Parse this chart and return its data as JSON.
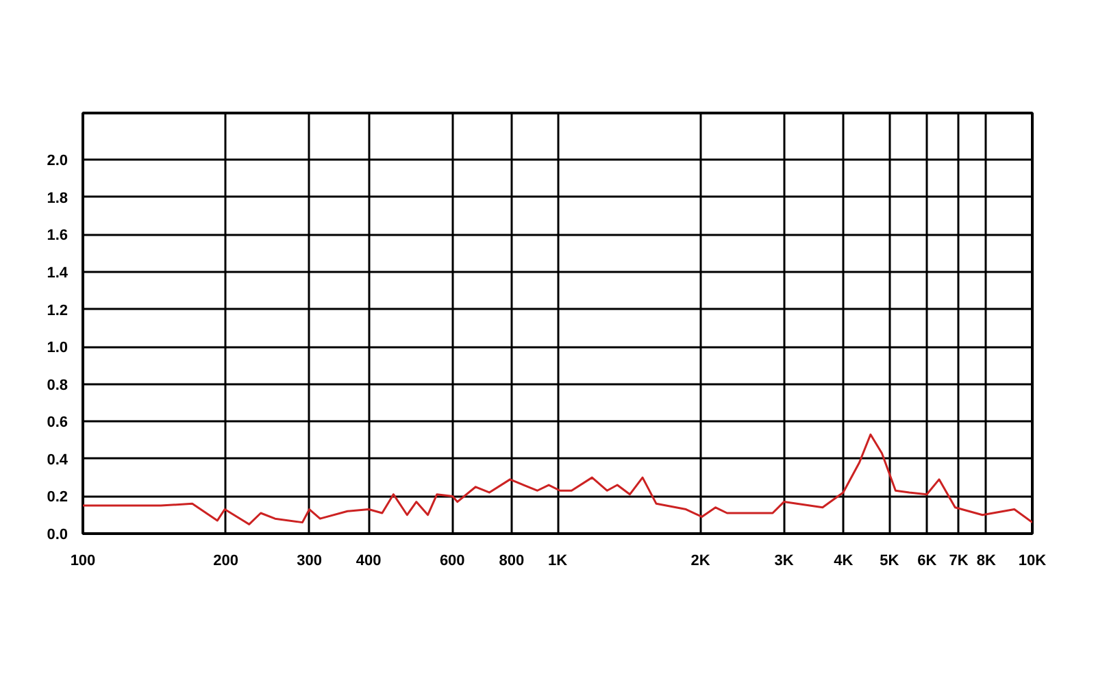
{
  "chart_data": {
    "type": "line",
    "log": "x",
    "grid": true,
    "marker": "none",
    "line_style": "solid",
    "xlim": [
      100,
      10000
    ],
    "ylim": [
      0,
      2.25
    ],
    "xticks": [
      {
        "value": 100,
        "label": "100"
      },
      {
        "value": 200,
        "label": "200"
      },
      {
        "value": 300,
        "label": "300"
      },
      {
        "value": 400,
        "label": "400"
      },
      {
        "value": 600,
        "label": "600"
      },
      {
        "value": 800,
        "label": "800"
      },
      {
        "value": 1000,
        "label": "1K"
      },
      {
        "value": 2000,
        "label": "2K"
      },
      {
        "value": 3000,
        "label": "3K"
      },
      {
        "value": 4000,
        "label": "4K"
      },
      {
        "value": 5000,
        "label": "5K"
      },
      {
        "value": 6000,
        "label": "6K"
      },
      {
        "value": 7000,
        "label": "7K"
      },
      {
        "value": 8000,
        "label": "8K"
      },
      {
        "value": 10000,
        "label": "10K"
      }
    ],
    "yticks": [
      {
        "value": 0,
        "label": "0.0"
      },
      {
        "value": 0.2,
        "label": "0.2"
      },
      {
        "value": 0.4,
        "label": "0.4"
      },
      {
        "value": 0.6,
        "label": "0.6"
      },
      {
        "value": 0.8,
        "label": "0.8"
      },
      {
        "value": 1.0,
        "label": "1.0"
      },
      {
        "value": 1.2,
        "label": "1.2"
      },
      {
        "value": 1.4,
        "label": "1.4"
      },
      {
        "value": 1.6,
        "label": "1.6"
      },
      {
        "value": 1.8,
        "label": "1.8"
      },
      {
        "value": 2.0,
        "label": "2.0"
      }
    ],
    "series": [
      {
        "color": "#cc2222",
        "x": [
          100,
          146,
          170,
          192,
          199,
          224,
          237,
          254,
          290,
          300,
          316,
          361,
          400,
          427,
          451,
          482,
          504,
          533,
          557,
          601,
          615,
          672,
          718,
          794,
          906,
          958,
          1012,
          1070,
          1182,
          1271,
          1336,
          1420,
          1510,
          1614,
          1864,
          2013,
          2152,
          2275,
          2838,
          2998,
          3616,
          3996,
          4322,
          4563,
          4822,
          5152,
          5508,
          5994,
          6363,
          6877,
          7852,
          9165,
          10000
        ],
        "values": [
          0.15,
          0.15,
          0.16,
          0.07,
          0.13,
          0.05,
          0.11,
          0.08,
          0.06,
          0.13,
          0.08,
          0.12,
          0.13,
          0.11,
          0.21,
          0.1,
          0.17,
          0.1,
          0.21,
          0.2,
          0.17,
          0.25,
          0.22,
          0.29,
          0.23,
          0.26,
          0.23,
          0.23,
          0.3,
          0.23,
          0.26,
          0.21,
          0.3,
          0.16,
          0.13,
          0.09,
          0.14,
          0.11,
          0.11,
          0.17,
          0.14,
          0.22,
          0.38,
          0.53,
          0.43,
          0.23,
          0.22,
          0.21,
          0.29,
          0.14,
          0.1,
          0.13,
          0.06
        ]
      }
    ]
  }
}
